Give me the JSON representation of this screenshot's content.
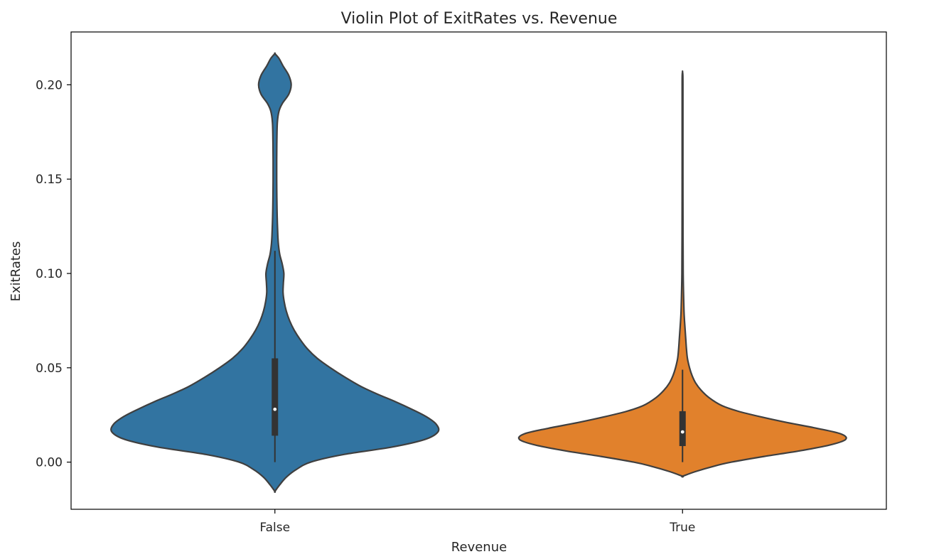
{
  "chart_data": {
    "type": "violin",
    "title": "Violin Plot of ExitRates vs. Revenue",
    "xlabel": "Revenue",
    "ylabel": "ExitRates",
    "categories": [
      "False",
      "True"
    ],
    "ylim": [
      -0.025,
      0.228
    ],
    "yticks": [
      0.0,
      0.05,
      0.1,
      0.15,
      0.2
    ],
    "ytick_labels": [
      "0.00",
      "0.05",
      "0.10",
      "0.15",
      "0.20"
    ],
    "grid": false,
    "colors": {
      "False": "#3274a1",
      "True": "#e1812c",
      "outline": "#3f3f3f",
      "box": "#333333"
    },
    "violins": [
      {
        "category": "False",
        "whisker": [
          0.0,
          0.112
        ],
        "quartiles": [
          0.014,
          0.055
        ],
        "median": 0.028,
        "density_profile": [
          [
            -0.0155,
            0.0
          ],
          [
            -0.012,
            0.03
          ],
          [
            -0.008,
            0.07
          ],
          [
            -0.004,
            0.13
          ],
          [
            0.0,
            0.22
          ],
          [
            0.004,
            0.42
          ],
          [
            0.008,
            0.72
          ],
          [
            0.012,
            0.92
          ],
          [
            0.016,
            1.0
          ],
          [
            0.02,
            0.99
          ],
          [
            0.024,
            0.93
          ],
          [
            0.028,
            0.84
          ],
          [
            0.032,
            0.74
          ],
          [
            0.036,
            0.63
          ],
          [
            0.04,
            0.53
          ],
          [
            0.045,
            0.43
          ],
          [
            0.05,
            0.34
          ],
          [
            0.055,
            0.26
          ],
          [
            0.06,
            0.2
          ],
          [
            0.065,
            0.155
          ],
          [
            0.07,
            0.118
          ],
          [
            0.075,
            0.09
          ],
          [
            0.08,
            0.07
          ],
          [
            0.085,
            0.057
          ],
          [
            0.09,
            0.05
          ],
          [
            0.095,
            0.052
          ],
          [
            0.1,
            0.055
          ],
          [
            0.105,
            0.045
          ],
          [
            0.11,
            0.03
          ],
          [
            0.115,
            0.022
          ],
          [
            0.12,
            0.018
          ],
          [
            0.13,
            0.014
          ],
          [
            0.14,
            0.012
          ],
          [
            0.15,
            0.011
          ],
          [
            0.16,
            0.011
          ],
          [
            0.17,
            0.012
          ],
          [
            0.18,
            0.015
          ],
          [
            0.186,
            0.025
          ],
          [
            0.19,
            0.045
          ],
          [
            0.195,
            0.085
          ],
          [
            0.2,
            0.1
          ],
          [
            0.205,
            0.085
          ],
          [
            0.21,
            0.05
          ],
          [
            0.214,
            0.025
          ],
          [
            0.2165,
            0.0
          ]
        ]
      },
      {
        "category": "True",
        "whisker": [
          0.0,
          0.049
        ],
        "quartiles": [
          0.0085,
          0.027
        ],
        "median": 0.016,
        "density_profile": [
          [
            -0.0075,
            0.0
          ],
          [
            -0.005,
            0.08
          ],
          [
            -0.002,
            0.2
          ],
          [
            0.0,
            0.3
          ],
          [
            0.003,
            0.5
          ],
          [
            0.006,
            0.72
          ],
          [
            0.009,
            0.9
          ],
          [
            0.012,
            1.0
          ],
          [
            0.015,
            0.97
          ],
          [
            0.018,
            0.82
          ],
          [
            0.021,
            0.64
          ],
          [
            0.024,
            0.48
          ],
          [
            0.027,
            0.34
          ],
          [
            0.03,
            0.24
          ],
          [
            0.034,
            0.165
          ],
          [
            0.038,
            0.115
          ],
          [
            0.042,
            0.08
          ],
          [
            0.046,
            0.058
          ],
          [
            0.05,
            0.043
          ],
          [
            0.055,
            0.03
          ],
          [
            0.06,
            0.024
          ],
          [
            0.065,
            0.02
          ],
          [
            0.07,
            0.016
          ],
          [
            0.075,
            0.012
          ],
          [
            0.08,
            0.009
          ],
          [
            0.09,
            0.006
          ],
          [
            0.1,
            0.004
          ],
          [
            0.12,
            0.003
          ],
          [
            0.15,
            0.0025
          ],
          [
            0.18,
            0.0025
          ],
          [
            0.2,
            0.0025
          ],
          [
            0.205,
            0.002
          ],
          [
            0.207,
            0.0
          ]
        ]
      }
    ]
  }
}
